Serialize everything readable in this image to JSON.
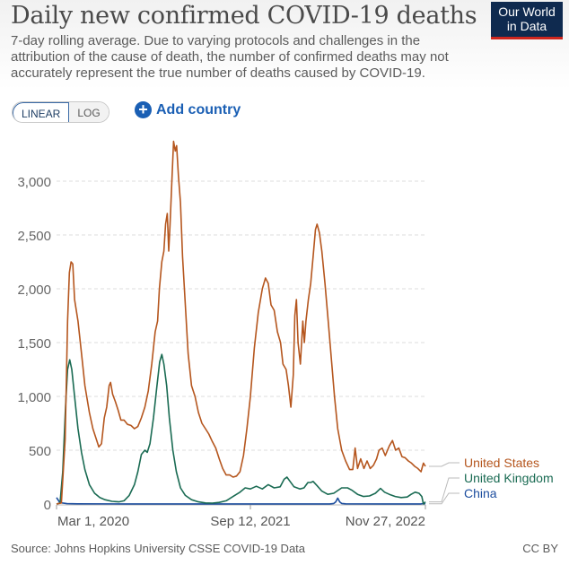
{
  "header": {
    "title": "Daily new confirmed COVID-19 deaths",
    "subtitle": "7-day rolling average. Due to varying protocols and challenges in the attribution of the cause of death, the number of confirmed deaths may not accurately represent the true number of deaths caused by COVID-19.",
    "logo_line1": "Our World",
    "logo_line2": "in Data"
  },
  "controls": {
    "scale_options": [
      "LINEAR",
      "LOG"
    ],
    "selected_scale": "LINEAR",
    "add_country_label": "Add country",
    "add_icon": "plus-circle-icon"
  },
  "footer": {
    "source": "Source: Johns Hopkins University CSSE COVID-19 Data",
    "license": "CC BY"
  },
  "chart_data": {
    "type": "line",
    "title": "Daily new confirmed COVID-19 deaths",
    "xlabel": "",
    "ylabel": "",
    "ylim": [
      0,
      3400
    ],
    "yticks": [
      0,
      500,
      1000,
      1500,
      2000,
      2500,
      3000
    ],
    "ytick_labels": [
      "0",
      "500",
      "1,000",
      "1,500",
      "2,000",
      "2,500",
      "3,000"
    ],
    "xticks": [
      {
        "label": "Mar 1, 2020",
        "day": 0
      },
      {
        "label": "Sep 12, 2021",
        "day": 560
      },
      {
        "label": "Nov 27, 2022",
        "day": 1001
      }
    ],
    "x_unit": "days since Mar 1, 2020",
    "grid": "horizontal dashed",
    "legend": "right (line-end labels)",
    "series": [
      {
        "name": "United States",
        "color": "#b5561e",
        "points": [
          [
            0,
            0
          ],
          [
            14,
            10
          ],
          [
            25,
            600
          ],
          [
            32,
            1700
          ],
          [
            37,
            2150
          ],
          [
            42,
            2250
          ],
          [
            47,
            2230
          ],
          [
            52,
            1900
          ],
          [
            62,
            1700
          ],
          [
            72,
            1400
          ],
          [
            82,
            1100
          ],
          [
            95,
            850
          ],
          [
            105,
            700
          ],
          [
            115,
            600
          ],
          [
            122,
            530
          ],
          [
            130,
            560
          ],
          [
            138,
            800
          ],
          [
            145,
            900
          ],
          [
            152,
            1100
          ],
          [
            156,
            1130
          ],
          [
            162,
            1020
          ],
          [
            170,
            950
          ],
          [
            178,
            870
          ],
          [
            186,
            780
          ],
          [
            195,
            780
          ],
          [
            205,
            740
          ],
          [
            215,
            730
          ],
          [
            225,
            700
          ],
          [
            235,
            720
          ],
          [
            245,
            800
          ],
          [
            255,
            900
          ],
          [
            265,
            1050
          ],
          [
            275,
            1300
          ],
          [
            285,
            1600
          ],
          [
            292,
            1700
          ],
          [
            297,
            2000
          ],
          [
            304,
            2250
          ],
          [
            310,
            2350
          ],
          [
            315,
            2600
          ],
          [
            320,
            2700
          ],
          [
            324,
            2350
          ],
          [
            328,
            2600
          ],
          [
            333,
            2980
          ],
          [
            338,
            3370
          ],
          [
            343,
            3280
          ],
          [
            347,
            3330
          ],
          [
            352,
            3050
          ],
          [
            358,
            2800
          ],
          [
            364,
            2300
          ],
          [
            372,
            1850
          ],
          [
            380,
            1400
          ],
          [
            390,
            1100
          ],
          [
            400,
            1000
          ],
          [
            410,
            850
          ],
          [
            420,
            750
          ],
          [
            430,
            700
          ],
          [
            440,
            650
          ],
          [
            450,
            580
          ],
          [
            460,
            520
          ],
          [
            470,
            420
          ],
          [
            480,
            330
          ],
          [
            490,
            270
          ],
          [
            500,
            270
          ],
          [
            510,
            250
          ],
          [
            520,
            260
          ],
          [
            530,
            300
          ],
          [
            540,
            450
          ],
          [
            550,
            700
          ],
          [
            560,
            1000
          ],
          [
            570,
            1450
          ],
          [
            580,
            1780
          ],
          [
            590,
            2000
          ],
          [
            598,
            2100
          ],
          [
            605,
            2050
          ],
          [
            612,
            1850
          ],
          [
            620,
            1800
          ],
          [
            628,
            1600
          ],
          [
            636,
            1500
          ],
          [
            642,
            1300
          ],
          [
            650,
            1250
          ],
          [
            656,
            1100
          ],
          [
            662,
            900
          ],
          [
            668,
            1200
          ],
          [
            672,
            1750
          ],
          [
            676,
            1900
          ],
          [
            680,
            1500
          ],
          [
            686,
            1300
          ],
          [
            692,
            1700
          ],
          [
            696,
            1500
          ],
          [
            700,
            1700
          ],
          [
            706,
            1900
          ],
          [
            712,
            2050
          ],
          [
            718,
            2300
          ],
          [
            724,
            2550
          ],
          [
            728,
            2600
          ],
          [
            734,
            2520
          ],
          [
            740,
            2350
          ],
          [
            748,
            2050
          ],
          [
            756,
            1700
          ],
          [
            764,
            1350
          ],
          [
            772,
            1000
          ],
          [
            780,
            700
          ],
          [
            790,
            500
          ],
          [
            800,
            400
          ],
          [
            810,
            320
          ],
          [
            818,
            320
          ],
          [
            824,
            520
          ],
          [
            830,
            330
          ],
          [
            838,
            420
          ],
          [
            846,
            330
          ],
          [
            854,
            400
          ],
          [
            862,
            330
          ],
          [
            870,
            360
          ],
          [
            878,
            420
          ],
          [
            884,
            500
          ],
          [
            892,
            520
          ],
          [
            900,
            450
          ],
          [
            910,
            540
          ],
          [
            918,
            590
          ],
          [
            926,
            500
          ],
          [
            934,
            520
          ],
          [
            942,
            440
          ],
          [
            950,
            430
          ],
          [
            958,
            400
          ],
          [
            966,
            380
          ],
          [
            974,
            350
          ],
          [
            982,
            330
          ],
          [
            990,
            300
          ],
          [
            996,
            380
          ],
          [
            1001,
            350
          ]
        ]
      },
      {
        "name": "United Kingdom",
        "color": "#1a6b53",
        "points": [
          [
            0,
            0
          ],
          [
            10,
            10
          ],
          [
            18,
            300
          ],
          [
            26,
            900
          ],
          [
            32,
            1250
          ],
          [
            38,
            1340
          ],
          [
            44,
            1250
          ],
          [
            52,
            1000
          ],
          [
            62,
            700
          ],
          [
            72,
            480
          ],
          [
            82,
            320
          ],
          [
            95,
            180
          ],
          [
            110,
            100
          ],
          [
            125,
            60
          ],
          [
            140,
            40
          ],
          [
            160,
            25
          ],
          [
            180,
            20
          ],
          [
            195,
            30
          ],
          [
            210,
            80
          ],
          [
            225,
            180
          ],
          [
            235,
            300
          ],
          [
            245,
            460
          ],
          [
            255,
            500
          ],
          [
            262,
            480
          ],
          [
            270,
            560
          ],
          [
            280,
            800
          ],
          [
            290,
            1100
          ],
          [
            298,
            1320
          ],
          [
            304,
            1390
          ],
          [
            310,
            1300
          ],
          [
            318,
            1100
          ],
          [
            326,
            800
          ],
          [
            336,
            500
          ],
          [
            346,
            300
          ],
          [
            358,
            150
          ],
          [
            372,
            80
          ],
          [
            390,
            40
          ],
          [
            410,
            20
          ],
          [
            430,
            10
          ],
          [
            450,
            8
          ],
          [
            470,
            15
          ],
          [
            490,
            30
          ],
          [
            510,
            70
          ],
          [
            530,
            110
          ],
          [
            545,
            150
          ],
          [
            560,
            140
          ],
          [
            575,
            165
          ],
          [
            590,
            140
          ],
          [
            605,
            180
          ],
          [
            620,
            150
          ],
          [
            635,
            160
          ],
          [
            645,
            230
          ],
          [
            652,
            250
          ],
          [
            660,
            210
          ],
          [
            670,
            160
          ],
          [
            685,
            140
          ],
          [
            695,
            150
          ],
          [
            705,
            200
          ],
          [
            712,
            200
          ],
          [
            718,
            210
          ],
          [
            728,
            170
          ],
          [
            740,
            120
          ],
          [
            755,
            90
          ],
          [
            770,
            100
          ],
          [
            790,
            150
          ],
          [
            805,
            150
          ],
          [
            815,
            130
          ],
          [
            830,
            90
          ],
          [
            845,
            70
          ],
          [
            860,
            75
          ],
          [
            875,
            100
          ],
          [
            888,
            145
          ],
          [
            898,
            110
          ],
          [
            910,
            90
          ],
          [
            925,
            70
          ],
          [
            940,
            60
          ],
          [
            955,
            65
          ],
          [
            965,
            90
          ],
          [
            975,
            110
          ],
          [
            985,
            100
          ],
          [
            992,
            70
          ],
          [
            996,
            0
          ],
          [
            1001,
            20
          ]
        ]
      },
      {
        "name": "China",
        "color": "#1c4d9e",
        "points": [
          [
            0,
            60
          ],
          [
            8,
            20
          ],
          [
            16,
            10
          ],
          [
            30,
            3
          ],
          [
            60,
            2
          ],
          [
            200,
            1
          ],
          [
            400,
            1
          ],
          [
            600,
            1
          ],
          [
            760,
            1
          ],
          [
            770,
            5
          ],
          [
            775,
            20
          ],
          [
            780,
            55
          ],
          [
            785,
            20
          ],
          [
            790,
            5
          ],
          [
            800,
            2
          ],
          [
            900,
            1
          ],
          [
            990,
            1
          ],
          [
            996,
            5
          ],
          [
            1001,
            2
          ]
        ]
      }
    ]
  }
}
